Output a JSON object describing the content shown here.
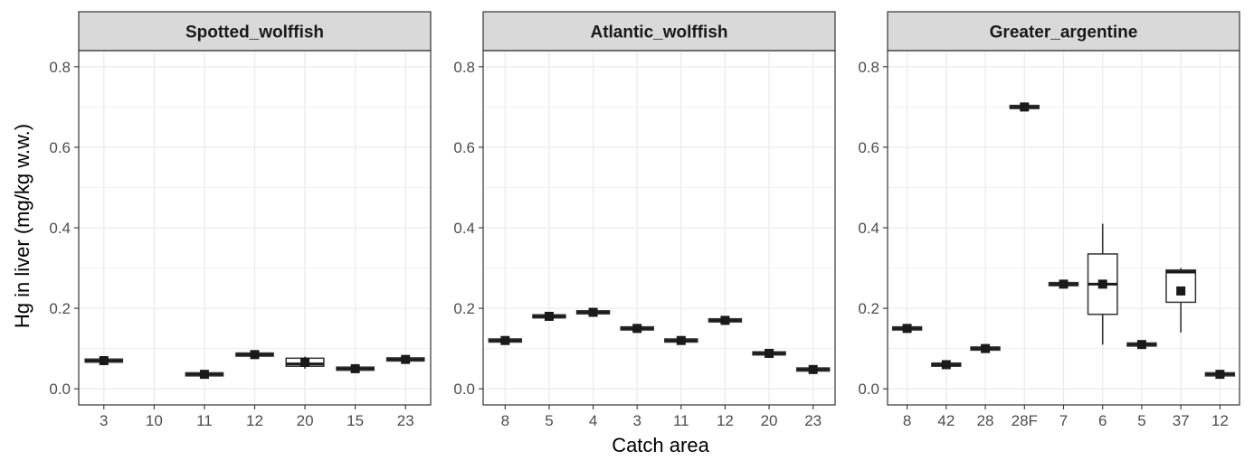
{
  "chart_data": {
    "type": "box",
    "xlabel": "Catch area",
    "ylabel": "Hg in liver (mg/kg w.w.)",
    "ylim": [
      -0.04,
      0.84
    ],
    "yticks": [
      0.0,
      0.2,
      0.4,
      0.6,
      0.8
    ],
    "ytick_labels": [
      "0.0",
      "0.2",
      "0.4",
      "0.6",
      "0.8"
    ],
    "grid": true,
    "colors": {
      "strip_fill": "#d9d9d9",
      "grid": "#ebebeb",
      "border": "#333333",
      "mark": "#1a1a1a"
    },
    "panels": [
      {
        "name": "Spotted_wolffish",
        "categories": [
          "3",
          "10",
          "11",
          "12",
          "20",
          "15",
          "23"
        ],
        "boxes": [
          {
            "category": "3",
            "q1": 0.068,
            "median": 0.07,
            "q3": 0.072,
            "low": 0.068,
            "high": 0.072,
            "mean": 0.07
          },
          {
            "category": "11",
            "q1": 0.034,
            "median": 0.036,
            "q3": 0.038,
            "low": 0.034,
            "high": 0.038,
            "mean": 0.036
          },
          {
            "category": "12",
            "q1": 0.082,
            "median": 0.085,
            "q3": 0.088,
            "low": 0.082,
            "high": 0.088,
            "mean": 0.085
          },
          {
            "category": "20",
            "q1": 0.056,
            "median": 0.062,
            "q3": 0.076,
            "low": 0.05,
            "high": 0.08,
            "mean": 0.066
          },
          {
            "category": "15",
            "q1": 0.048,
            "median": 0.05,
            "q3": 0.052,
            "low": 0.048,
            "high": 0.052,
            "mean": 0.05
          },
          {
            "category": "23",
            "q1": 0.071,
            "median": 0.073,
            "q3": 0.075,
            "low": 0.071,
            "high": 0.075,
            "mean": 0.073
          }
        ]
      },
      {
        "name": "Atlantic_wolffish",
        "categories": [
          "8",
          "5",
          "4",
          "3",
          "11",
          "12",
          "20",
          "23"
        ],
        "boxes": [
          {
            "category": "8",
            "q1": 0.118,
            "median": 0.12,
            "q3": 0.122,
            "low": 0.118,
            "high": 0.122,
            "mean": 0.12
          },
          {
            "category": "5",
            "q1": 0.178,
            "median": 0.18,
            "q3": 0.182,
            "low": 0.178,
            "high": 0.182,
            "mean": 0.18
          },
          {
            "category": "4",
            "q1": 0.188,
            "median": 0.19,
            "q3": 0.192,
            "low": 0.188,
            "high": 0.192,
            "mean": 0.19
          },
          {
            "category": "3",
            "q1": 0.148,
            "median": 0.15,
            "q3": 0.152,
            "low": 0.148,
            "high": 0.152,
            "mean": 0.15
          },
          {
            "category": "11",
            "q1": 0.118,
            "median": 0.12,
            "q3": 0.122,
            "low": 0.118,
            "high": 0.122,
            "mean": 0.12
          },
          {
            "category": "12",
            "q1": 0.168,
            "median": 0.17,
            "q3": 0.172,
            "low": 0.168,
            "high": 0.172,
            "mean": 0.17
          },
          {
            "category": "20",
            "q1": 0.085,
            "median": 0.088,
            "q3": 0.091,
            "low": 0.085,
            "high": 0.091,
            "mean": 0.088
          },
          {
            "category": "23",
            "q1": 0.046,
            "median": 0.048,
            "q3": 0.05,
            "low": 0.046,
            "high": 0.05,
            "mean": 0.048
          }
        ]
      },
      {
        "name": "Greater_argentine",
        "categories": [
          "8",
          "42",
          "28",
          "28F",
          "7",
          "6",
          "5",
          "37",
          "12"
        ],
        "boxes": [
          {
            "category": "8",
            "q1": 0.146,
            "median": 0.15,
            "q3": 0.154,
            "low": 0.146,
            "high": 0.154,
            "mean": 0.15
          },
          {
            "category": "42",
            "q1": 0.058,
            "median": 0.06,
            "q3": 0.062,
            "low": 0.058,
            "high": 0.062,
            "mean": 0.06
          },
          {
            "category": "28",
            "q1": 0.098,
            "median": 0.1,
            "q3": 0.102,
            "low": 0.098,
            "high": 0.102,
            "mean": 0.1
          },
          {
            "category": "28F",
            "q1": 0.698,
            "median": 0.7,
            "q3": 0.702,
            "low": 0.698,
            "high": 0.702,
            "mean": 0.7
          },
          {
            "category": "7",
            "q1": 0.256,
            "median": 0.26,
            "q3": 0.264,
            "low": 0.256,
            "high": 0.264,
            "mean": 0.26
          },
          {
            "category": "6",
            "q1": 0.185,
            "median": 0.26,
            "q3": 0.335,
            "low": 0.11,
            "high": 0.41,
            "mean": 0.26
          },
          {
            "category": "5",
            "q1": 0.108,
            "median": 0.11,
            "q3": 0.112,
            "low": 0.108,
            "high": 0.112,
            "mean": 0.11
          },
          {
            "category": "37",
            "q1": 0.215,
            "median": 0.29,
            "q3": 0.295,
            "low": 0.14,
            "high": 0.3,
            "mean": 0.243
          },
          {
            "category": "12",
            "q1": 0.034,
            "median": 0.036,
            "q3": 0.038,
            "low": 0.034,
            "high": 0.038,
            "mean": 0.036
          }
        ]
      }
    ]
  }
}
